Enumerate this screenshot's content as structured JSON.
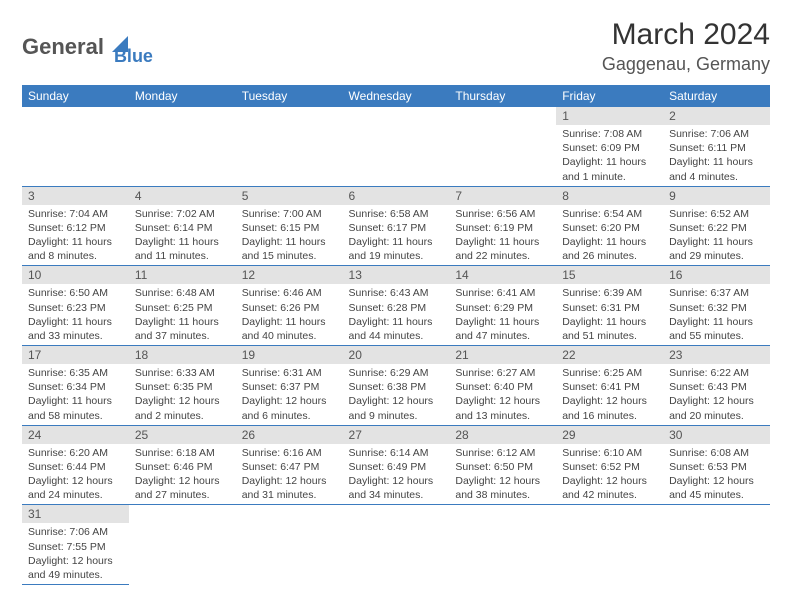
{
  "logo": {
    "text1": "General",
    "text2": "Blue"
  },
  "title": "March 2024",
  "location": "Gaggenau, Germany",
  "colors": {
    "header_bg": "#3b7bbf",
    "header_fg": "#ffffff",
    "daynum_bg": "#e3e3e3",
    "daynum_fg": "#555555",
    "body_fg": "#444444",
    "row_border": "#3b7bbf",
    "page_bg": "#ffffff"
  },
  "weekdays": [
    "Sunday",
    "Monday",
    "Tuesday",
    "Wednesday",
    "Thursday",
    "Friday",
    "Saturday"
  ],
  "weeks": [
    [
      {
        "n": "",
        "sr": "",
        "ss": "",
        "dl": ""
      },
      {
        "n": "",
        "sr": "",
        "ss": "",
        "dl": ""
      },
      {
        "n": "",
        "sr": "",
        "ss": "",
        "dl": ""
      },
      {
        "n": "",
        "sr": "",
        "ss": "",
        "dl": ""
      },
      {
        "n": "",
        "sr": "",
        "ss": "",
        "dl": ""
      },
      {
        "n": "1",
        "sr": "Sunrise: 7:08 AM",
        "ss": "Sunset: 6:09 PM",
        "dl": "Daylight: 11 hours and 1 minute."
      },
      {
        "n": "2",
        "sr": "Sunrise: 7:06 AM",
        "ss": "Sunset: 6:11 PM",
        "dl": "Daylight: 11 hours and 4 minutes."
      }
    ],
    [
      {
        "n": "3",
        "sr": "Sunrise: 7:04 AM",
        "ss": "Sunset: 6:12 PM",
        "dl": "Daylight: 11 hours and 8 minutes."
      },
      {
        "n": "4",
        "sr": "Sunrise: 7:02 AM",
        "ss": "Sunset: 6:14 PM",
        "dl": "Daylight: 11 hours and 11 minutes."
      },
      {
        "n": "5",
        "sr": "Sunrise: 7:00 AM",
        "ss": "Sunset: 6:15 PM",
        "dl": "Daylight: 11 hours and 15 minutes."
      },
      {
        "n": "6",
        "sr": "Sunrise: 6:58 AM",
        "ss": "Sunset: 6:17 PM",
        "dl": "Daylight: 11 hours and 19 minutes."
      },
      {
        "n": "7",
        "sr": "Sunrise: 6:56 AM",
        "ss": "Sunset: 6:19 PM",
        "dl": "Daylight: 11 hours and 22 minutes."
      },
      {
        "n": "8",
        "sr": "Sunrise: 6:54 AM",
        "ss": "Sunset: 6:20 PM",
        "dl": "Daylight: 11 hours and 26 minutes."
      },
      {
        "n": "9",
        "sr": "Sunrise: 6:52 AM",
        "ss": "Sunset: 6:22 PM",
        "dl": "Daylight: 11 hours and 29 minutes."
      }
    ],
    [
      {
        "n": "10",
        "sr": "Sunrise: 6:50 AM",
        "ss": "Sunset: 6:23 PM",
        "dl": "Daylight: 11 hours and 33 minutes."
      },
      {
        "n": "11",
        "sr": "Sunrise: 6:48 AM",
        "ss": "Sunset: 6:25 PM",
        "dl": "Daylight: 11 hours and 37 minutes."
      },
      {
        "n": "12",
        "sr": "Sunrise: 6:46 AM",
        "ss": "Sunset: 6:26 PM",
        "dl": "Daylight: 11 hours and 40 minutes."
      },
      {
        "n": "13",
        "sr": "Sunrise: 6:43 AM",
        "ss": "Sunset: 6:28 PM",
        "dl": "Daylight: 11 hours and 44 minutes."
      },
      {
        "n": "14",
        "sr": "Sunrise: 6:41 AM",
        "ss": "Sunset: 6:29 PM",
        "dl": "Daylight: 11 hours and 47 minutes."
      },
      {
        "n": "15",
        "sr": "Sunrise: 6:39 AM",
        "ss": "Sunset: 6:31 PM",
        "dl": "Daylight: 11 hours and 51 minutes."
      },
      {
        "n": "16",
        "sr": "Sunrise: 6:37 AM",
        "ss": "Sunset: 6:32 PM",
        "dl": "Daylight: 11 hours and 55 minutes."
      }
    ],
    [
      {
        "n": "17",
        "sr": "Sunrise: 6:35 AM",
        "ss": "Sunset: 6:34 PM",
        "dl": "Daylight: 11 hours and 58 minutes."
      },
      {
        "n": "18",
        "sr": "Sunrise: 6:33 AM",
        "ss": "Sunset: 6:35 PM",
        "dl": "Daylight: 12 hours and 2 minutes."
      },
      {
        "n": "19",
        "sr": "Sunrise: 6:31 AM",
        "ss": "Sunset: 6:37 PM",
        "dl": "Daylight: 12 hours and 6 minutes."
      },
      {
        "n": "20",
        "sr": "Sunrise: 6:29 AM",
        "ss": "Sunset: 6:38 PM",
        "dl": "Daylight: 12 hours and 9 minutes."
      },
      {
        "n": "21",
        "sr": "Sunrise: 6:27 AM",
        "ss": "Sunset: 6:40 PM",
        "dl": "Daylight: 12 hours and 13 minutes."
      },
      {
        "n": "22",
        "sr": "Sunrise: 6:25 AM",
        "ss": "Sunset: 6:41 PM",
        "dl": "Daylight: 12 hours and 16 minutes."
      },
      {
        "n": "23",
        "sr": "Sunrise: 6:22 AM",
        "ss": "Sunset: 6:43 PM",
        "dl": "Daylight: 12 hours and 20 minutes."
      }
    ],
    [
      {
        "n": "24",
        "sr": "Sunrise: 6:20 AM",
        "ss": "Sunset: 6:44 PM",
        "dl": "Daylight: 12 hours and 24 minutes."
      },
      {
        "n": "25",
        "sr": "Sunrise: 6:18 AM",
        "ss": "Sunset: 6:46 PM",
        "dl": "Daylight: 12 hours and 27 minutes."
      },
      {
        "n": "26",
        "sr": "Sunrise: 6:16 AM",
        "ss": "Sunset: 6:47 PM",
        "dl": "Daylight: 12 hours and 31 minutes."
      },
      {
        "n": "27",
        "sr": "Sunrise: 6:14 AM",
        "ss": "Sunset: 6:49 PM",
        "dl": "Daylight: 12 hours and 34 minutes."
      },
      {
        "n": "28",
        "sr": "Sunrise: 6:12 AM",
        "ss": "Sunset: 6:50 PM",
        "dl": "Daylight: 12 hours and 38 minutes."
      },
      {
        "n": "29",
        "sr": "Sunrise: 6:10 AM",
        "ss": "Sunset: 6:52 PM",
        "dl": "Daylight: 12 hours and 42 minutes."
      },
      {
        "n": "30",
        "sr": "Sunrise: 6:08 AM",
        "ss": "Sunset: 6:53 PM",
        "dl": "Daylight: 12 hours and 45 minutes."
      }
    ],
    [
      {
        "n": "31",
        "sr": "Sunrise: 7:06 AM",
        "ss": "Sunset: 7:55 PM",
        "dl": "Daylight: 12 hours and 49 minutes."
      },
      {
        "n": "",
        "sr": "",
        "ss": "",
        "dl": ""
      },
      {
        "n": "",
        "sr": "",
        "ss": "",
        "dl": ""
      },
      {
        "n": "",
        "sr": "",
        "ss": "",
        "dl": ""
      },
      {
        "n": "",
        "sr": "",
        "ss": "",
        "dl": ""
      },
      {
        "n": "",
        "sr": "",
        "ss": "",
        "dl": ""
      },
      {
        "n": "",
        "sr": "",
        "ss": "",
        "dl": ""
      }
    ]
  ]
}
